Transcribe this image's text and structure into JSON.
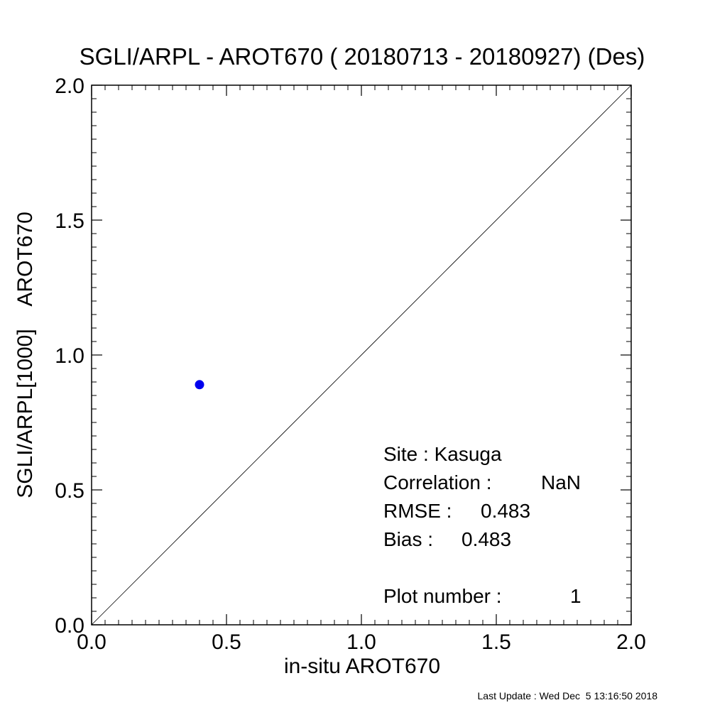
{
  "chart_data": {
    "type": "scatter",
    "title": "SGLI/ARPL - AROT670 ( 20180713 - 20180927) (Des)",
    "xlabel": "in-situ AROT670",
    "ylabel": "SGLI/ARPL[1000]    AROT670",
    "xlim": [
      0.0,
      2.0
    ],
    "ylim": [
      0.0,
      2.0
    ],
    "x_ticks": [
      "0.0",
      "0.5",
      "1.0",
      "1.5",
      "2.0"
    ],
    "y_ticks": [
      "0.0",
      "0.5",
      "1.0",
      "1.5",
      "2.0"
    ],
    "grid": false,
    "reference_line": "1:1",
    "point_color": "#0000ee",
    "points": [
      {
        "x": 0.4,
        "y": 0.89
      }
    ]
  },
  "stats": {
    "site": "Site : Kasuga",
    "correlation_label": "Correlation :",
    "correlation_value": "NaN",
    "rmse_label": "RMSE :",
    "rmse_value": "0.483",
    "bias_label": "Bias :",
    "bias_value": "0.483",
    "plot_number_label": "Plot number :",
    "plot_number_value": "1"
  },
  "footer": "Last Update : Wed Dec  5 13:16:50 2018"
}
